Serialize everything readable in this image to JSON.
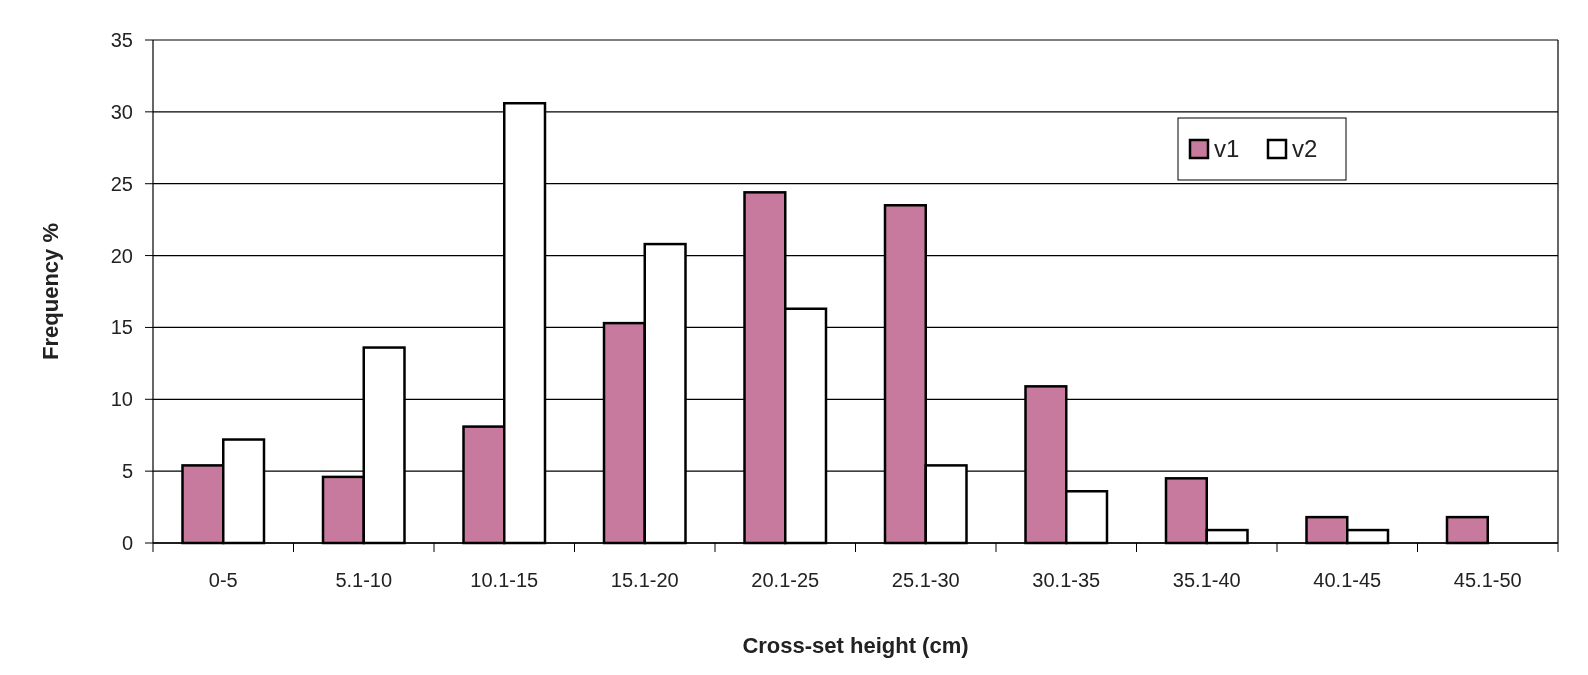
{
  "chart_data": {
    "type": "bar",
    "xlabel": "Cross-set height (cm)",
    "ylabel": "Frequency %",
    "categories": [
      "0-5",
      "5.1-10",
      "10.1-15",
      "15.1-20",
      "20.1-25",
      "25.1-30",
      "30.1-35",
      "35.1-40",
      "40.1-45",
      "45.1-50"
    ],
    "series": [
      {
        "name": "v1",
        "color": "#c77a9e",
        "values": [
          5.4,
          4.6,
          8.1,
          15.3,
          24.4,
          23.5,
          10.9,
          4.5,
          1.8,
          1.8
        ]
      },
      {
        "name": "v2",
        "color": "#ffffff",
        "values": [
          7.2,
          13.6,
          30.6,
          20.8,
          16.3,
          5.4,
          3.6,
          0.9,
          0.9,
          null
        ]
      }
    ],
    "ylim": [
      0,
      35
    ],
    "yticks": [
      0,
      5,
      10,
      15,
      20,
      25,
      30,
      35
    ],
    "grid": "y",
    "legend": "top right"
  }
}
